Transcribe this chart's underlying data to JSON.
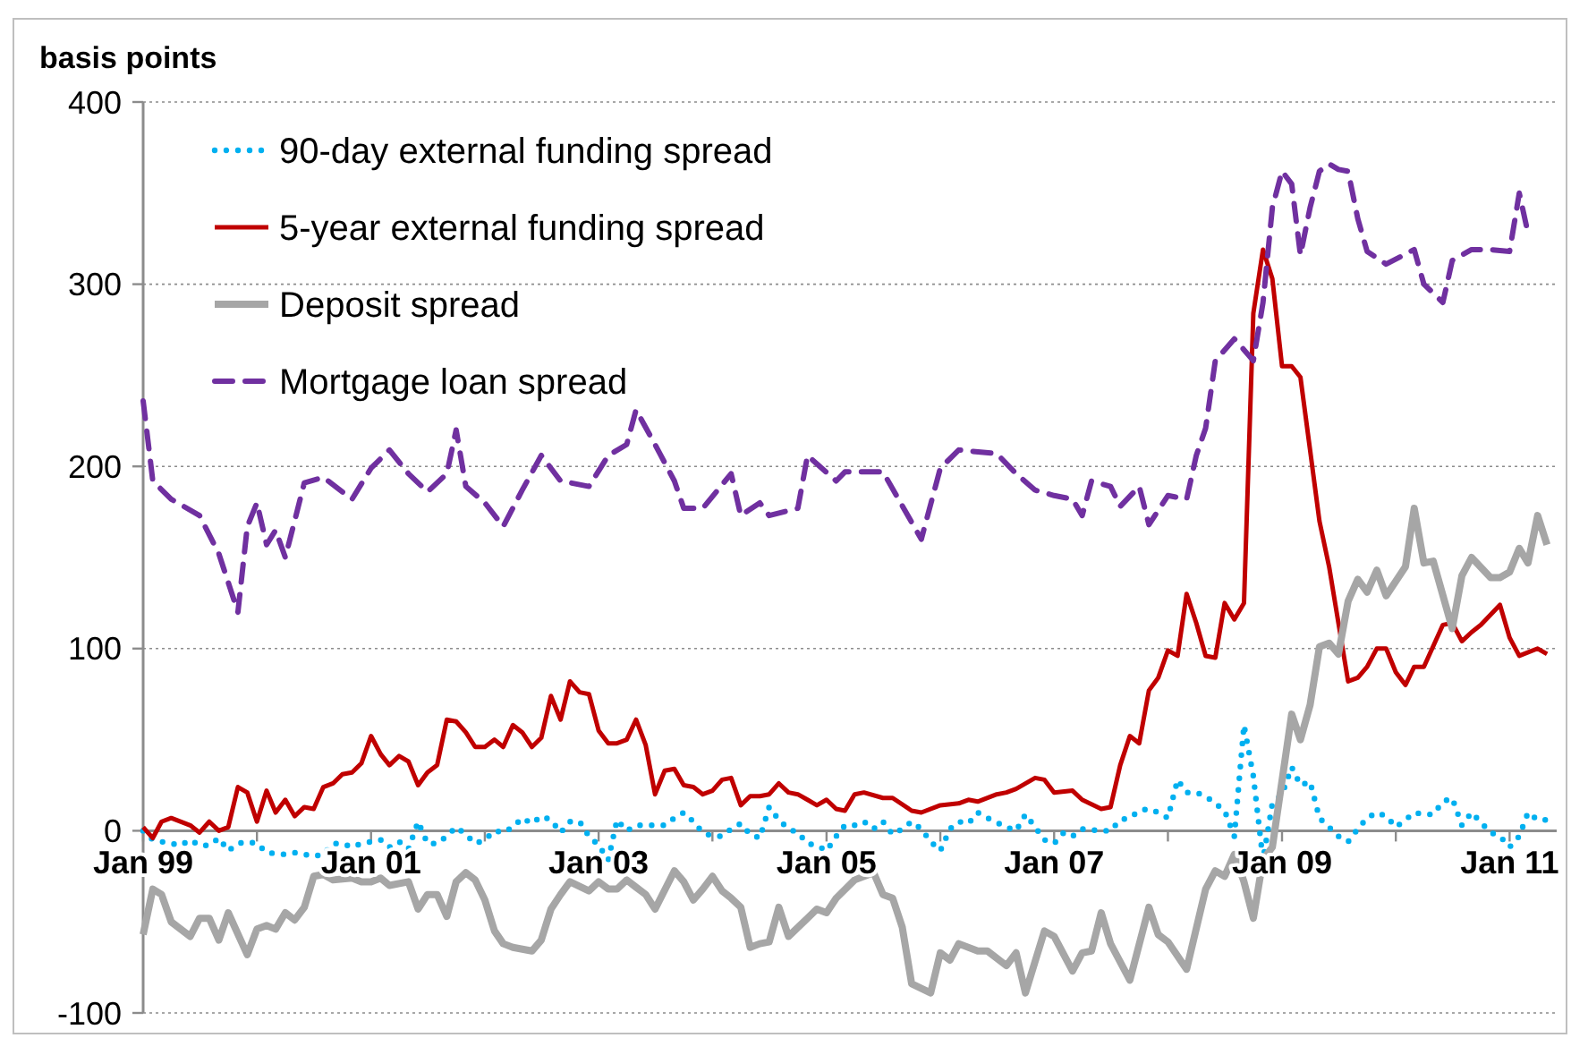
{
  "chart_data": {
    "type": "line",
    "ylabel": "basis points",
    "xlim": [
      "1999-01",
      "2011-06"
    ],
    "xticks": [
      {
        "value": "1999-01",
        "label": "Jan 99"
      },
      {
        "value": "2000-01",
        "label": null
      },
      {
        "value": "2001-01",
        "label": "Jan 01"
      },
      {
        "value": "2002-01",
        "label": null
      },
      {
        "value": "2003-01",
        "label": "Jan 03"
      },
      {
        "value": "2004-01",
        "label": null
      },
      {
        "value": "2005-01",
        "label": "Jan 05"
      },
      {
        "value": "2006-01",
        "label": null
      },
      {
        "value": "2007-01",
        "label": "Jan 07"
      },
      {
        "value": "2008-01",
        "label": null
      },
      {
        "value": "2009-01",
        "label": "Jan 09"
      },
      {
        "value": "2010-01",
        "label": null
      },
      {
        "value": "2011-01",
        "label": "Jan 11"
      }
    ],
    "ylim": [
      -100,
      400
    ],
    "yticks": [
      -100,
      0,
      100,
      200,
      300,
      400
    ],
    "grid": "y",
    "legend": "top left",
    "marker": "none",
    "series": [
      {
        "name": "90-day external funding spread",
        "color": "#00b0f0",
        "line_style": "dotted",
        "x": [
          "1999-01",
          "1999-02",
          "1999-03",
          "1999-05",
          "1999-06",
          "1999-07",
          "1999-08",
          "1999-09",
          "1999-10",
          "1999-11",
          "1999-12",
          "2000-01",
          "2000-02",
          "2000-04",
          "2000-05",
          "2000-06",
          "2000-07",
          "2000-08",
          "2000-09",
          "2000-10",
          "2000-11",
          "2000-12",
          "2001-02",
          "2001-03",
          "2001-04",
          "2001-05",
          "2001-06",
          "2001-07",
          "2001-08",
          "2001-09",
          "2001-10",
          "2001-11",
          "2001-12",
          "2002-01",
          "2002-02",
          "2002-03",
          "2002-04",
          "2002-05",
          "2002-06",
          "2002-07",
          "2002-08",
          "2002-09",
          "2002-10",
          "2002-11",
          "2002-12",
          "2003-01",
          "2003-02",
          "2003-03",
          "2003-04",
          "2003-05",
          "2003-06",
          "2003-08",
          "2003-09",
          "2003-10",
          "2003-11",
          "2003-12",
          "2004-01",
          "2004-02",
          "2004-03",
          "2004-04",
          "2004-05",
          "2004-06",
          "2004-07",
          "2004-08",
          "2004-09",
          "2004-10",
          "2004-11",
          "2004-12",
          "2005-01",
          "2005-02",
          "2005-03",
          "2005-04",
          "2005-05",
          "2005-06",
          "2005-07",
          "2005-08",
          "2005-09",
          "2005-10",
          "2005-11",
          "2005-12",
          "2006-01",
          "2006-02",
          "2006-03",
          "2006-04",
          "2006-05",
          "2006-06",
          "2006-08",
          "2006-09",
          "2006-10",
          "2006-11",
          "2006-12",
          "2007-01",
          "2007-02",
          "2007-03",
          "2007-04",
          "2007-06",
          "2007-07",
          "2007-08",
          "2007-09",
          "2007-10",
          "2007-11",
          "2007-12",
          "2008-01",
          "2008-02",
          "2008-03",
          "2008-04",
          "2008-05",
          "2008-06",
          "2008-07",
          "2008-08",
          "2008-09",
          "2008-10",
          "2008-11",
          "2008-12",
          "2009-01",
          "2009-02",
          "2009-03",
          "2009-04",
          "2009-05",
          "2009-06",
          "2009-07",
          "2009-08",
          "2009-09",
          "2009-10",
          "2009-11",
          "2009-12",
          "2010-01",
          "2010-02",
          "2010-03",
          "2010-04",
          "2010-05",
          "2010-06",
          "2010-07",
          "2010-08",
          "2010-09",
          "2010-11",
          "2010-12",
          "2011-01",
          "2011-02",
          "2011-03",
          "2011-04",
          "2011-05"
        ],
        "values": [
          0,
          -5,
          -6,
          -8,
          -5,
          -8,
          -8,
          -4,
          -11,
          -7,
          -6,
          -7,
          -12,
          -13,
          -12,
          -13,
          -14,
          -13,
          -7,
          -7,
          -9,
          -7,
          -5,
          -9,
          -6,
          -10,
          5,
          -7,
          -7,
          -3,
          2,
          -2,
          -7,
          -5,
          0,
          -1,
          2,
          7,
          4,
          8,
          6,
          -1,
          5,
          5,
          -3,
          -8,
          -16,
          6,
          0,
          3,
          3,
          3,
          7,
          10,
          5,
          -1,
          -3,
          -3,
          1,
          4,
          -2,
          -4,
          13,
          6,
          1,
          -1,
          -7,
          -8,
          -11,
          -3,
          3,
          3,
          5,
          1,
          5,
          -2,
          1,
          5,
          1,
          -6,
          -11,
          1,
          5,
          4,
          10,
          7,
          2,
          0,
          9,
          2,
          -5,
          -7,
          -1,
          -3,
          1,
          0,
          0,
          6,
          7,
          11,
          12,
          10,
          7,
          28,
          21,
          21,
          19,
          15,
          11,
          -3,
          58,
          30,
          -16,
          15,
          20,
          35,
          25,
          27,
          7,
          2,
          -3,
          -6,
          1,
          7,
          10,
          8,
          2,
          6,
          10,
          9,
          9,
          16,
          18,
          3,
          10,
          -1,
          -3,
          -9,
          -3,
          10,
          6,
          6
        ]
      },
      {
        "name": "5-year external funding spread",
        "color": "#c00000",
        "line_style": "solid",
        "x": [
          "1999-01",
          "1999-02",
          "1999-03",
          "1999-04",
          "1999-06",
          "1999-07",
          "1999-08",
          "1999-09",
          "1999-10",
          "1999-11",
          "1999-12",
          "2000-01",
          "2000-02",
          "2000-03",
          "2000-04",
          "2000-05",
          "2000-06",
          "2000-07",
          "2000-08",
          "2000-09",
          "2000-10",
          "2000-11",
          "2000-12",
          "2001-01",
          "2001-02",
          "2001-03",
          "2001-04",
          "2001-05",
          "2001-06",
          "2001-07",
          "2001-08",
          "2001-09",
          "2001-10",
          "2001-11",
          "2001-12",
          "2002-01",
          "2002-02",
          "2002-03",
          "2002-04",
          "2002-05",
          "2002-06",
          "2002-07",
          "2002-08",
          "2002-09",
          "2002-10",
          "2002-11",
          "2002-12",
          "2003-01",
          "2003-02",
          "2003-03",
          "2003-04",
          "2003-05",
          "2003-06",
          "2003-07",
          "2003-08",
          "2003-09",
          "2003-10",
          "2003-11",
          "2003-12",
          "2004-01",
          "2004-02",
          "2004-03",
          "2004-04",
          "2004-05",
          "2004-06",
          "2004-07",
          "2004-08",
          "2004-09",
          "2004-10",
          "2004-11",
          "2004-12",
          "2005-01",
          "2005-02",
          "2005-03",
          "2005-04",
          "2005-05",
          "2005-07",
          "2005-08",
          "2005-10",
          "2005-11",
          "2006-01",
          "2006-03",
          "2006-04",
          "2006-05",
          "2006-07",
          "2006-08",
          "2006-09",
          "2006-11",
          "2006-12",
          "2007-01",
          "2007-03",
          "2007-04",
          "2007-06",
          "2007-07",
          "2007-08",
          "2007-09",
          "2007-10",
          "2007-11",
          "2007-12",
          "2008-01",
          "2008-02",
          "2008-03",
          "2008-04",
          "2008-05",
          "2008-06",
          "2008-07",
          "2008-08",
          "2008-09",
          "2008-10",
          "2008-11",
          "2008-12",
          "2009-01",
          "2009-02",
          "2009-03",
          "2009-04",
          "2009-05",
          "2009-06",
          "2009-07",
          "2009-08",
          "2009-09",
          "2009-10",
          "2009-11",
          "2009-12",
          "2010-01",
          "2010-02",
          "2010-03",
          "2010-04",
          "2010-06",
          "2010-07",
          "2010-08",
          "2010-09",
          "2010-10",
          "2010-12",
          "2011-01",
          "2011-02",
          "2011-04",
          "2011-05"
        ],
        "values": [
          2,
          -4,
          5,
          7,
          3,
          -1,
          5,
          0,
          2,
          24,
          21,
          5,
          22,
          10,
          17,
          8,
          13,
          12,
          24,
          26,
          31,
          32,
          37,
          52,
          42,
          36,
          41,
          38,
          25,
          32,
          36,
          61,
          60,
          54,
          46,
          46,
          50,
          46,
          58,
          54,
          46,
          51,
          74,
          61,
          82,
          76,
          75,
          55,
          48,
          48,
          50,
          61,
          47,
          20,
          33,
          34,
          25,
          24,
          20,
          22,
          28,
          29,
          14,
          19,
          19,
          20,
          26,
          21,
          20,
          17,
          14,
          17,
          12,
          11,
          20,
          21,
          18,
          18,
          11,
          10,
          14,
          15,
          17,
          16,
          20,
          21,
          23,
          29,
          28,
          21,
          22,
          17,
          12,
          13,
          36,
          52,
          48,
          77,
          84,
          99,
          96,
          130,
          114,
          96,
          95,
          125,
          116,
          125,
          284,
          319,
          303,
          255,
          255,
          249,
          209,
          170,
          145,
          114,
          82,
          84,
          90,
          100,
          100,
          87,
          80,
          90,
          90,
          113,
          114,
          104,
          109,
          113,
          124,
          106,
          96,
          100,
          97
        ]
      },
      {
        "name": "Deposit spread",
        "color": "#a6a6a6",
        "line_style": "solid",
        "x": [
          "1999-01",
          "1999-02",
          "1999-03",
          "1999-04",
          "1999-06",
          "1999-07",
          "1999-08",
          "1999-09",
          "1999-10",
          "1999-12",
          "2000-01",
          "2000-02",
          "2000-03",
          "2000-04",
          "2000-05",
          "2000-06",
          "2000-07",
          "2000-08",
          "2000-09",
          "2000-11",
          "2000-12",
          "2001-01",
          "2001-02",
          "2001-03",
          "2001-05",
          "2001-06",
          "2001-07",
          "2001-08",
          "2001-09",
          "2001-10",
          "2001-11",
          "2001-12",
          "2002-01",
          "2002-02",
          "2002-03",
          "2002-04",
          "2002-06",
          "2002-07",
          "2002-08",
          "2002-09",
          "2002-10",
          "2002-12",
          "2003-01",
          "2003-02",
          "2003-03",
          "2003-04",
          "2003-05",
          "2003-06",
          "2003-07",
          "2003-09",
          "2003-10",
          "2003-11",
          "2003-12",
          "2004-01",
          "2004-02",
          "2004-03",
          "2004-04",
          "2004-05",
          "2004-06",
          "2004-07",
          "2004-08",
          "2004-09",
          "2004-11",
          "2004-12",
          "2005-01",
          "2005-02",
          "2005-04",
          "2005-06",
          "2005-07",
          "2005-08",
          "2005-09",
          "2005-10",
          "2005-12",
          "2006-01",
          "2006-02",
          "2006-03",
          "2006-05",
          "2006-06",
          "2006-08",
          "2006-09",
          "2006-10",
          "2006-12",
          "2007-01",
          "2007-03",
          "2007-04",
          "2007-05",
          "2007-06",
          "2007-07",
          "2007-09",
          "2007-11",
          "2007-12",
          "2008-01",
          "2008-03",
          "2008-05",
          "2008-06",
          "2008-07",
          "2008-08",
          "2008-09",
          "2008-10",
          "2008-11",
          "2008-12",
          "2009-02",
          "2009-03",
          "2009-04",
          "2009-05",
          "2009-06",
          "2009-07",
          "2009-08",
          "2009-09",
          "2009-10",
          "2009-11",
          "2009-12",
          "2010-02",
          "2010-03",
          "2010-04",
          "2010-05",
          "2010-07",
          "2010-08",
          "2010-09",
          "2010-11",
          "2010-12",
          "2011-01",
          "2011-02",
          "2011-03",
          "2011-04",
          "2011-05"
        ],
        "values": [
          -57,
          -32,
          -35,
          -50,
          -58,
          -48,
          -48,
          -60,
          -45,
          -68,
          -54,
          -52,
          -54,
          -45,
          -49,
          -42,
          -25,
          -24,
          -27,
          -26,
          -28,
          -28,
          -26,
          -30,
          -28,
          -43,
          -35,
          -35,
          -47,
          -28,
          -23,
          -27,
          -38,
          -55,
          -62,
          -64,
          -66,
          -60,
          -43,
          -35,
          -28,
          -33,
          -28,
          -32,
          -32,
          -27,
          -31,
          -35,
          -43,
          -22,
          -28,
          -38,
          -32,
          -25,
          -33,
          -37,
          -42,
          -64,
          -62,
          -61,
          -42,
          -58,
          -48,
          -43,
          -45,
          -37,
          -27,
          -23,
          -35,
          -37,
          -53,
          -84,
          -89,
          -67,
          -71,
          -62,
          -66,
          -66,
          -74,
          -67,
          -89,
          -55,
          -58,
          -77,
          -67,
          -66,
          -45,
          -62,
          -82,
          -42,
          -57,
          -61,
          -76,
          -32,
          -22,
          -25,
          -13,
          -28,
          -48,
          -16,
          -9,
          64,
          50,
          69,
          101,
          103,
          97,
          126,
          138,
          131,
          143,
          129,
          145,
          177,
          147,
          148,
          111,
          140,
          150,
          139,
          139,
          142,
          155,
          147,
          173,
          157
        ]
      },
      {
        "name": "Mortgage loan spread",
        "color": "#7030a0",
        "line_style": "dashed",
        "x": [
          "1999-01",
          "1999-02",
          "1999-04",
          "1999-07",
          "1999-09",
          "1999-11",
          "1999-12",
          "2000-01",
          "2000-02",
          "2000-03",
          "2000-04",
          "2000-06",
          "2000-08",
          "2000-11",
          "2001-01",
          "2001-03",
          "2001-05",
          "2001-07",
          "2001-09",
          "2001-10",
          "2001-11",
          "2002-01",
          "2002-03",
          "2002-05",
          "2002-07",
          "2002-09",
          "2002-12",
          "2003-02",
          "2003-04",
          "2003-05",
          "2003-07",
          "2003-09",
          "2003-10",
          "2003-12",
          "2004-03",
          "2004-04",
          "2004-06",
          "2004-07",
          "2004-10",
          "2004-11",
          "2005-02",
          "2005-03",
          "2005-07",
          "2005-11",
          "2006-01",
          "2006-03",
          "2006-07",
          "2006-09",
          "2006-11",
          "2007-01",
          "2007-03",
          "2007-04",
          "2007-05",
          "2007-07",
          "2007-08",
          "2007-10",
          "2007-11",
          "2008-01",
          "2008-03",
          "2008-04",
          "2008-05",
          "2008-06",
          "2008-08",
          "2008-09",
          "2008-10",
          "2008-11",
          "2008-12",
          "2009-01",
          "2009-02",
          "2009-03",
          "2009-04",
          "2009-05",
          "2009-06",
          "2009-07",
          "2009-08",
          "2009-09",
          "2009-10",
          "2009-12",
          "2010-03",
          "2010-04",
          "2010-06",
          "2010-07",
          "2010-09",
          "2010-11",
          "2011-01",
          "2011-02",
          "2011-03"
        ],
        "values": [
          236,
          192,
          182,
          173,
          152,
          120,
          167,
          180,
          157,
          165,
          150,
          191,
          194,
          182,
          199,
          209,
          196,
          186,
          196,
          220,
          189,
          180,
          167,
          187,
          206,
          192,
          189,
          206,
          212,
          231,
          212,
          192,
          177,
          177,
          196,
          173,
          180,
          173,
          177,
          206,
          192,
          197,
          197,
          160,
          199,
          209,
          207,
          196,
          187,
          184,
          182,
          173,
          192,
          189,
          178,
          189,
          168,
          184,
          182,
          206,
          221,
          258,
          270,
          264,
          258,
          290,
          342,
          362,
          355,
          316,
          342,
          362,
          366,
          363,
          362,
          336,
          318,
          311,
          319,
          300,
          290,
          313,
          319,
          319,
          318,
          350,
          328
        ]
      }
    ]
  }
}
